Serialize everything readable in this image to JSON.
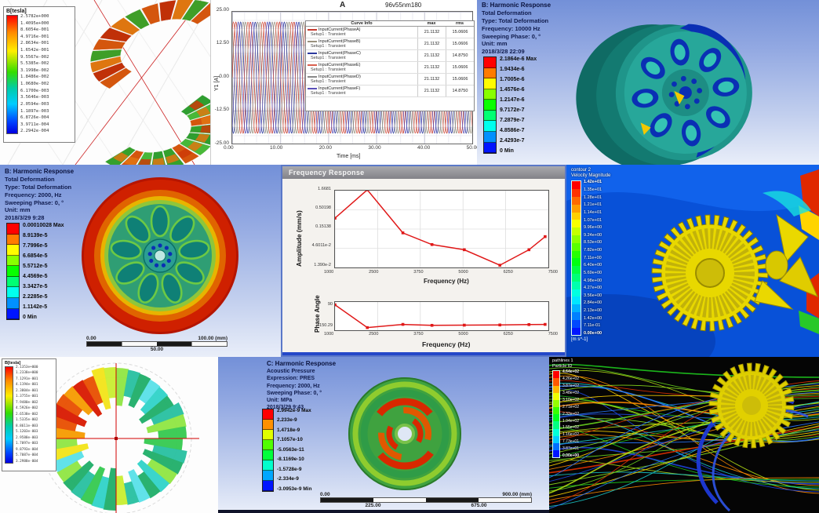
{
  "collage": {
    "flux_band": {
      "colorbar": {
        "title": "B[tesla]",
        "labels": [
          "2.5782e+000",
          "1.4095e+000",
          "8.6054e-001",
          "4.9716e-001",
          "2.8634e-001",
          "1.6542e-001",
          "9.5567e-002",
          "5.5385e-002",
          "3.1998e-002",
          "1.8486e-002",
          "1.0680e-002",
          "6.1700e-003",
          "3.5646e-003",
          "2.0594e-003",
          "1.1897e-003",
          "6.8726e-004",
          "3.9711e-004",
          "2.2942e-004"
        ]
      }
    },
    "current_plot": {
      "corner_label": "A",
      "title": "96v55nm180",
      "legend_header": {
        "curve": "Curve Info",
        "max": "max",
        "rms": "rms"
      },
      "ylabel": "Y1 [A]",
      "yticks": [
        "25.00",
        "12.50",
        "0.00",
        "-12.50",
        "-25.00"
      ],
      "xticks": [
        "0.00",
        "10.00",
        "20.00",
        "30.00",
        "40.00",
        "50.00"
      ],
      "xlabel": "Time [ms]"
    },
    "harmonic_10000": {
      "info": [
        "B: Harmonic Response",
        "Total Deformation",
        "Type: Total Deformation",
        "Frequency: 10000 Hz",
        "Sweeping Phase: 0, °",
        "Unit: mm",
        "2018/3/28 22:09"
      ],
      "colorbar_labels": [
        "2.1864e-6 Max",
        "1.9434e-6",
        "1.7005e-6",
        "1.4576e-6",
        "1.2147e-6",
        "9.7172e-7",
        "7.2879e-7",
        "4.8586e-7",
        "2.4293e-7",
        "0 Min"
      ]
    },
    "harmonic_2000": {
      "info": [
        "B: Harmonic Response",
        "Total Deformation",
        "Type: Total Deformation",
        "Frequency: 2000, Hz",
        "Sweeping Phase: 0, °",
        "Unit: mm",
        "2018/3/29 9:28"
      ],
      "colorbar_labels": [
        "0.00010028 Max",
        "8.9139e-5",
        "7.7996e-5",
        "6.6854e-5",
        "5.5712e-5",
        "4.4569e-5",
        "3.3427e-5",
        "2.2285e-5",
        "1.1142e-5",
        "0 Min"
      ],
      "ruler": {
        "start": "0.00",
        "end": "100.00 (mm)",
        "mid": "50.00"
      }
    },
    "freq_window": {
      "title": "Frequency Response"
    },
    "cfd_velocity": {
      "legend_title": [
        "contour 2",
        "Velocity Magnitude"
      ],
      "labels": [
        "1.42e+01",
        "1.35e+01",
        "1.28e+01",
        "1.21e+01",
        "1.14e+01",
        "1.07e+01",
        "9.96e+00",
        "9.24e+00",
        "8.53e+00",
        "7.82e+00",
        "7.11e+00",
        "6.40e+00",
        "5.69e+00",
        "4.98e+00",
        "4.27e+00",
        "3.56e+00",
        "2.84e+00",
        "2.13e+00",
        "1.42e+00",
        "7.11e-01",
        "0.00e+00"
      ],
      "unit": "[m s^-1]"
    },
    "flux_rotor": {
      "colorbar": {
        "title": "B[tesla]",
        "labels": [
          "2.1353e+000",
          "1.2338e+000",
          "7.1291e-001",
          "4.1194e-001",
          "2.3804e-001",
          "1.3755e-001",
          "7.9480e-002",
          "4.5926e-002",
          "2.6538e-002",
          "1.5335e-002",
          "8.8611e-003",
          "5.1203e-003",
          "2.9588e-003",
          "1.7097e-003",
          "9.8793e-004",
          "5.7087e-004",
          "3.2988e-004"
        ]
      }
    },
    "acoustic": {
      "info": [
        "C: Harmonic Response",
        "Acoustic Pressure",
        "Expression: PRES",
        "Frequency: 2000, Hz",
        "Sweeping Phase: 0, °",
        "Unit: MPa",
        "2018/3/29 9:43"
      ],
      "colorbar_labels": [
        "2.9942e-9 Max",
        "2.233e-9",
        "1.4718e-9",
        "7.1057e-10",
        "-5.0563e-11",
        "-8.1169e-10",
        "-1.5728e-9",
        "-2.334e-9",
        "-3.0953e-9 Min"
      ],
      "ruler": {
        "start": "0.00",
        "end": "900.00 (mm)",
        "mid_left": "225.00",
        "mid_right": "675.00"
      }
    },
    "particles": {
      "legend_title": [
        "pathlines 1",
        "Particle ID"
      ],
      "labels": [
        "4.64e+02",
        "4.26e+02",
        "3.87e+02",
        "3.48e+02",
        "3.10e+02",
        "2.71e+02",
        "2.32e+02",
        "1.94e+02",
        "1.55e+02",
        "1.16e+02",
        "7.73e+01",
        "3.87e+01",
        "0.00e+00"
      ]
    }
  },
  "chart_data": [
    {
      "type": "line",
      "title": "96v55nm180",
      "xlabel": "Time [ms]",
      "ylabel": "Y1 [A]",
      "xlim": [
        0,
        50
      ],
      "ylim": [
        -25,
        25
      ],
      "signal": "sinusoid",
      "amplitude": 21.1132,
      "period_ms": 3.03,
      "series": [
        {
          "name": "InputCurrent(PhaseA)",
          "setup": "Setup1 : Transient",
          "max": "21.1132",
          "rms": "15.0606",
          "phase_deg": 0,
          "color": "#c43a2e"
        },
        {
          "name": "InputCurrent(PhaseB)",
          "setup": "Setup1 : Transient",
          "max": "21.1132",
          "rms": "15.0606",
          "phase_deg": 120,
          "color": "#99917e"
        },
        {
          "name": "InputCurrent(PhaseC)",
          "setup": "Setup1 : Transient",
          "max": "21.1132",
          "rms": "14.8750",
          "phase_deg": 240,
          "color": "#2c3a9e"
        },
        {
          "name": "InputCurrent(PhaseE)",
          "setup": "Setup1 : Transient",
          "max": "21.1132",
          "rms": "15.0606",
          "phase_deg": 60,
          "color": "#d9604f"
        },
        {
          "name": "InputCurrent(PhaseD)",
          "setup": "Setup1 : Transient",
          "max": "21.1132",
          "rms": "15.0606",
          "phase_deg": 180,
          "color": "#8a8a8a"
        },
        {
          "name": "InputCurrent(PhaseF)",
          "setup": "Setup1 : Transient",
          "max": "21.1132",
          "rms": "14.8750",
          "phase_deg": 300,
          "color": "#5a4fb8"
        }
      ]
    },
    {
      "type": "line",
      "title": "Frequency Response - Amplitude",
      "xlabel": "Frequency (Hz)",
      "ylabel": "Amplitude (mm/s)",
      "yscale": "log",
      "yticks": [
        "1.6681",
        "0.50198",
        "0.15138",
        "4.6011e-2",
        "1.390e-2"
      ],
      "xticks": [
        "1000",
        "2500",
        "3750",
        "5000",
        "6250",
        "7500"
      ],
      "x": [
        1000,
        2000,
        3100,
        4000,
        5000,
        6100,
        7000,
        7500
      ],
      "y": [
        0.3,
        1.75,
        0.12,
        0.058,
        0.042,
        0.016,
        0.042,
        0.095
      ],
      "xlim": [
        1000,
        7600
      ],
      "ylim": [
        0.0139,
        1.6681
      ],
      "color": "#e01818"
    },
    {
      "type": "line",
      "title": "Frequency Response - Phase",
      "xlabel": "Frequency (Hz)",
      "ylabel": "Phase Angle",
      "yticks": [
        "90",
        "-150.29"
      ],
      "xticks": [
        "1000",
        "2500",
        "3750",
        "5000",
        "6250",
        "7500"
      ],
      "x": [
        1000,
        2000,
        3100,
        4000,
        5000,
        6100,
        7000,
        7500
      ],
      "y": [
        90,
        -152,
        -118,
        -128,
        -126,
        -124,
        -120,
        -118
      ],
      "xlim": [
        1000,
        7600
      ],
      "ylim": [
        -180,
        120
      ],
      "color": "#e01818"
    }
  ]
}
